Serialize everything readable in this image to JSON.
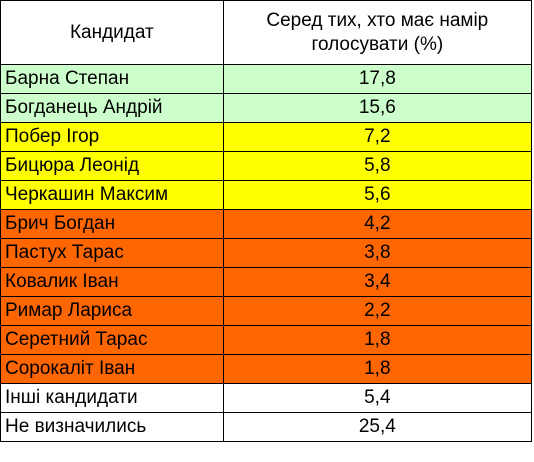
{
  "table": {
    "headers": {
      "candidate": "Кандидат",
      "value": "Серед тих, хто має намір голосувати (%)"
    },
    "rows": [
      {
        "name": "Барна Степан",
        "value": "17,8",
        "color": "#ccffcc"
      },
      {
        "name": "Богданець Андрій",
        "value": "15,6",
        "color": "#ccffcc"
      },
      {
        "name": "Побер Ігор",
        "value": "7,2",
        "color": "#ffff00"
      },
      {
        "name": "Бицюра Леонід",
        "value": "5,8",
        "color": "#ffff00"
      },
      {
        "name": "Черкашин Максим",
        "value": "5,6",
        "color": "#ffff00"
      },
      {
        "name": "Брич Богдан",
        "value": "4,2",
        "color": "#ff6600"
      },
      {
        "name": "Пастух Тарас",
        "value": "3,8",
        "color": "#ff6600"
      },
      {
        "name": "Ковалик Іван",
        "value": "3,4",
        "color": "#ff6600"
      },
      {
        "name": "Римар Лариса",
        "value": "2,2",
        "color": "#ff6600"
      },
      {
        "name": "Серетний Тарас",
        "value": "1,8",
        "color": "#ff6600"
      },
      {
        "name": "Сорокаліт Іван",
        "value": "1,8",
        "color": "#ff6600"
      },
      {
        "name": "Інші кандидати",
        "value": "5,4",
        "color": "#ffffff"
      },
      {
        "name": "Не визначились",
        "value": "25,4",
        "color": "#ffffff"
      }
    ]
  }
}
